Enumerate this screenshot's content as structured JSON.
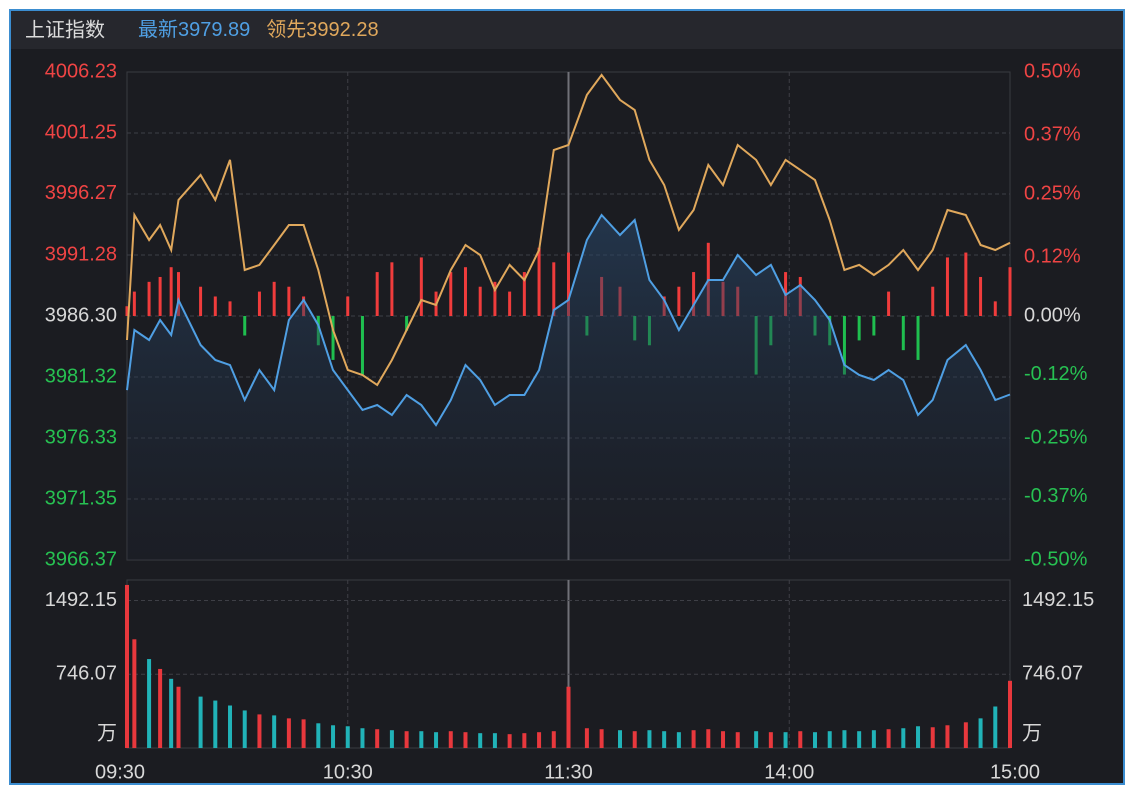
{
  "chart_data": [
    {
      "type": "line",
      "title": "上证指数",
      "x": [
        0,
        2,
        6,
        9,
        12,
        14,
        20,
        24,
        28,
        32,
        36,
        40,
        44,
        48,
        52,
        56,
        60,
        64,
        68,
        72,
        76,
        80,
        84,
        88,
        92,
        96,
        100,
        104,
        108,
        112,
        116,
        120,
        125,
        129,
        134,
        138,
        142,
        146,
        150,
        154,
        158,
        162,
        166,
        171,
        175,
        179,
        183,
        187,
        191,
        195,
        199,
        203,
        207,
        211,
        215,
        219,
        223,
        228,
        232,
        236,
        240
      ],
      "xlim": [
        0,
        240
      ],
      "xticks": [
        {
          "value": 0,
          "label": "09:30"
        },
        {
          "value": 60,
          "label": "10:30"
        },
        {
          "value": 120,
          "label": "11:30"
        },
        {
          "value": 180,
          "label": "14:00"
        },
        {
          "value": 240,
          "label": "15:00"
        }
      ],
      "ylim": [
        3966.37,
        4006.23
      ],
      "yticks": [
        4006.23,
        4001.25,
        3996.27,
        3991.28,
        {
          "value": 3986.3,
          "label": "3986.30"
        },
        3981.32,
        3976.33,
        3971.35,
        3966.37
      ],
      "y2lim": [
        -0.5,
        0.5
      ],
      "y2ticks": [
        {
          "value": 0.5,
          "label": "0.50%"
        },
        {
          "value": 0.37,
          "label": "0.37%"
        },
        {
          "value": 0.25,
          "label": "0.25%"
        },
        {
          "value": 0.12,
          "label": "0.12%"
        },
        {
          "value": 0,
          "label": "0.00%"
        },
        {
          "value": -0.12,
          "label": "-0.12%"
        },
        {
          "value": -0.25,
          "label": "-0.25%"
        },
        {
          "value": -0.37,
          "label": "-0.37%"
        },
        {
          "value": -0.5,
          "label": "-0.50%"
        }
      ],
      "grid": true,
      "series": [
        {
          "name": "最新",
          "color": "#4f9fe3",
          "values": [
            3980.25,
            3985.16,
            3984.34,
            3985.97,
            3984.75,
            3987.61,
            3983.93,
            3982.71,
            3982.3,
            3979.44,
            3981.89,
            3980.25,
            3985.97,
            3987.61,
            3985.56,
            3981.89,
            3980.25,
            3978.62,
            3979.03,
            3978.21,
            3979.85,
            3979.03,
            3977.39,
            3979.44,
            3982.3,
            3981.07,
            3979.03,
            3979.85,
            3979.85,
            3981.89,
            3986.79,
            3987.61,
            3992.51,
            3994.55,
            3992.92,
            3994.14,
            3989.24,
            3987.61,
            3985.16,
            3987.2,
            3989.24,
            3989.24,
            3991.28,
            3989.65,
            3990.47,
            3988.02,
            3988.83,
            3987.61,
            3985.97,
            3982.3,
            3981.48,
            3981.07,
            3981.89,
            3981.07,
            3978.21,
            3979.44,
            3982.71,
            3983.93,
            3981.89,
            3979.44,
            3979.89
          ]
        },
        {
          "name": "领先",
          "color": "#e0a85c",
          "values": [
            3984.34,
            3994.55,
            3992.51,
            3993.73,
            3991.69,
            3995.78,
            3997.82,
            3995.78,
            3999.05,
            3990.06,
            3990.47,
            3992.1,
            3993.73,
            3993.73,
            3990.06,
            3985.16,
            3981.89,
            3981.48,
            3980.66,
            3982.71,
            3985.16,
            3987.61,
            3987.2,
            3990.06,
            3992.1,
            3991.28,
            3988.42,
            3990.47,
            3989.24,
            3991.69,
            3999.86,
            4000.27,
            4004.36,
            4005.99,
            4003.95,
            4003.13,
            3999.05,
            3997.0,
            3993.33,
            3994.96,
            3998.64,
            3997.0,
            4000.27,
            3999.05,
            3997.0,
            3999.05,
            3998.23,
            3997.41,
            3994.14,
            3990.06,
            3990.47,
            3989.65,
            3990.47,
            3991.69,
            3990.06,
            3991.69,
            3994.96,
            3994.55,
            3992.1,
            3991.69,
            3992.28
          ]
        },
        {
          "type": "bar",
          "axis": "y2",
          "up_color": "#f03c3c",
          "down_color": "#1fbf4f",
          "values": [
            0.02,
            0.05,
            0.07,
            0.08,
            0.1,
            0.09,
            0.06,
            0.04,
            0.03,
            -0.04,
            0.05,
            0.07,
            0.06,
            0.04,
            -0.06,
            -0.09,
            0.04,
            -0.12,
            0.09,
            0.11,
            -0.03,
            0.12,
            0.05,
            0.09,
            0.1,
            0.06,
            0.07,
            0.05,
            0.09,
            0.14,
            0.11,
            0.13,
            -0.04,
            0.08,
            0.06,
            -0.05,
            -0.06,
            0.04,
            0.06,
            0.09,
            0.15,
            0.07,
            0.06,
            -0.12,
            -0.06,
            0.09,
            0.08,
            -0.04,
            -0.06,
            -0.12,
            -0.05,
            -0.04,
            0.05,
            -0.07,
            -0.09,
            0.06,
            0.12,
            0.13,
            0.08,
            0.03,
            0.1
          ]
        }
      ]
    },
    {
      "type": "bar",
      "unit": "万",
      "ylim": [
        0,
        1700
      ],
      "yticks": [
        746.07,
        1492.15
      ],
      "up_color": "#e8383d",
      "down_color": "#21b3b8",
      "values": [
        1650,
        1100,
        900,
        800,
        700,
        620,
        520,
        480,
        430,
        380,
        340,
        330,
        300,
        290,
        250,
        230,
        220,
        200,
        190,
        180,
        170,
        170,
        160,
        170,
        160,
        150,
        150,
        140,
        150,
        160,
        170,
        620,
        200,
        190,
        180,
        170,
        180,
        170,
        160,
        180,
        190,
        170,
        160,
        170,
        160,
        160,
        170,
        160,
        170,
        180,
        170,
        180,
        190,
        200,
        220,
        210,
        230,
        260,
        300,
        420,
        680
      ]
    }
  ]
}
